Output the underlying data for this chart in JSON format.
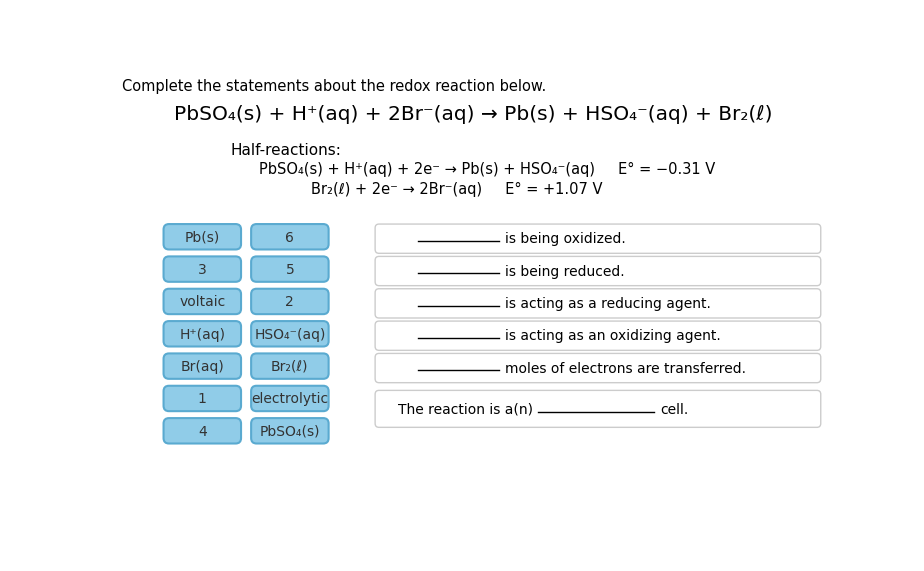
{
  "title_text": "Complete the statements about the redox reaction below.",
  "main_equation": "PbSO₄(s) + H⁺(aq) + 2Br⁻(aq) → Pb(s) + HSO₄⁻(aq) + Br₂(ℓ)",
  "half_reactions_label": "Half-reactions:",
  "half_reaction_1": "PbSO₄(s) + H⁺(aq) + 2e⁻ → Pb(s) + HSO₄⁻(aq)     E° = −0.31 V",
  "half_reaction_2": "Br₂(ℓ) + 2e⁻ → 2Br⁻(aq)     E° = +1.07 V",
  "blue_color": "#90cce8",
  "blue_border": "#5aaad0",
  "box_bg": "#ffffff",
  "box_border": "#bbbbbb",
  "left_col1_labels": [
    "Pb(s)",
    "3",
    "voltaic",
    "H⁺(aq)",
    "Br(aq)",
    "1",
    "4"
  ],
  "left_col2_labels": [
    "6",
    "5",
    "2",
    "HSO₄⁻(aq)",
    "Br₂(ℓ)",
    "electrolytic",
    "PbSO₄(s)"
  ],
  "right_statements": [
    "is being oxidized.",
    "is being reduced.",
    "is acting as a reducing agent.",
    "is acting as an oxidizing agent.",
    "moles of electrons are transferred."
  ],
  "last_statement_prefix": "The reaction is a(n)",
  "last_statement_suffix": "cell.",
  "background_color": "#ffffff"
}
